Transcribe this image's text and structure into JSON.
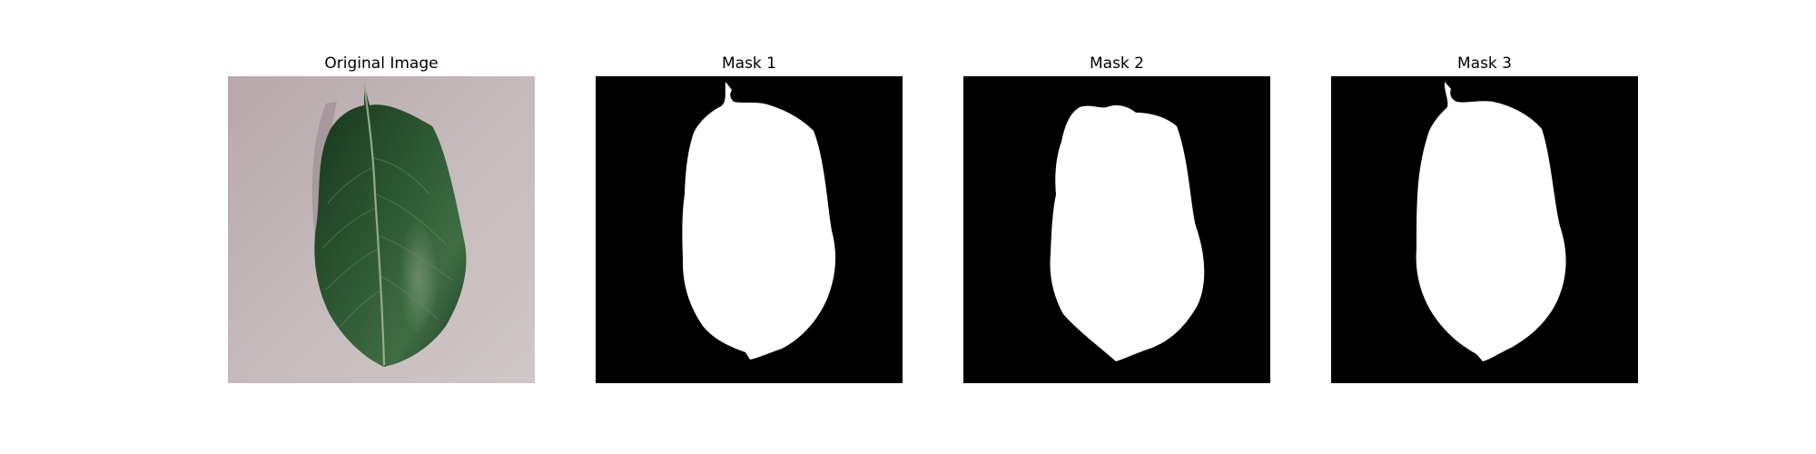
{
  "panels": [
    {
      "title": "Original Image",
      "kind": "photo"
    },
    {
      "title": "Mask 1",
      "kind": "mask"
    },
    {
      "title": "Mask 2",
      "kind": "mask"
    },
    {
      "title": "Mask 3",
      "kind": "mask"
    }
  ],
  "colors": {
    "background_surface": "#c1b5b7",
    "leaf_dark": "#1f3b22",
    "leaf_mid": "#2f5a33",
    "leaf_vein": "#a7b7a2",
    "mask_background": "#000000",
    "mask_foreground": "#ffffff"
  }
}
